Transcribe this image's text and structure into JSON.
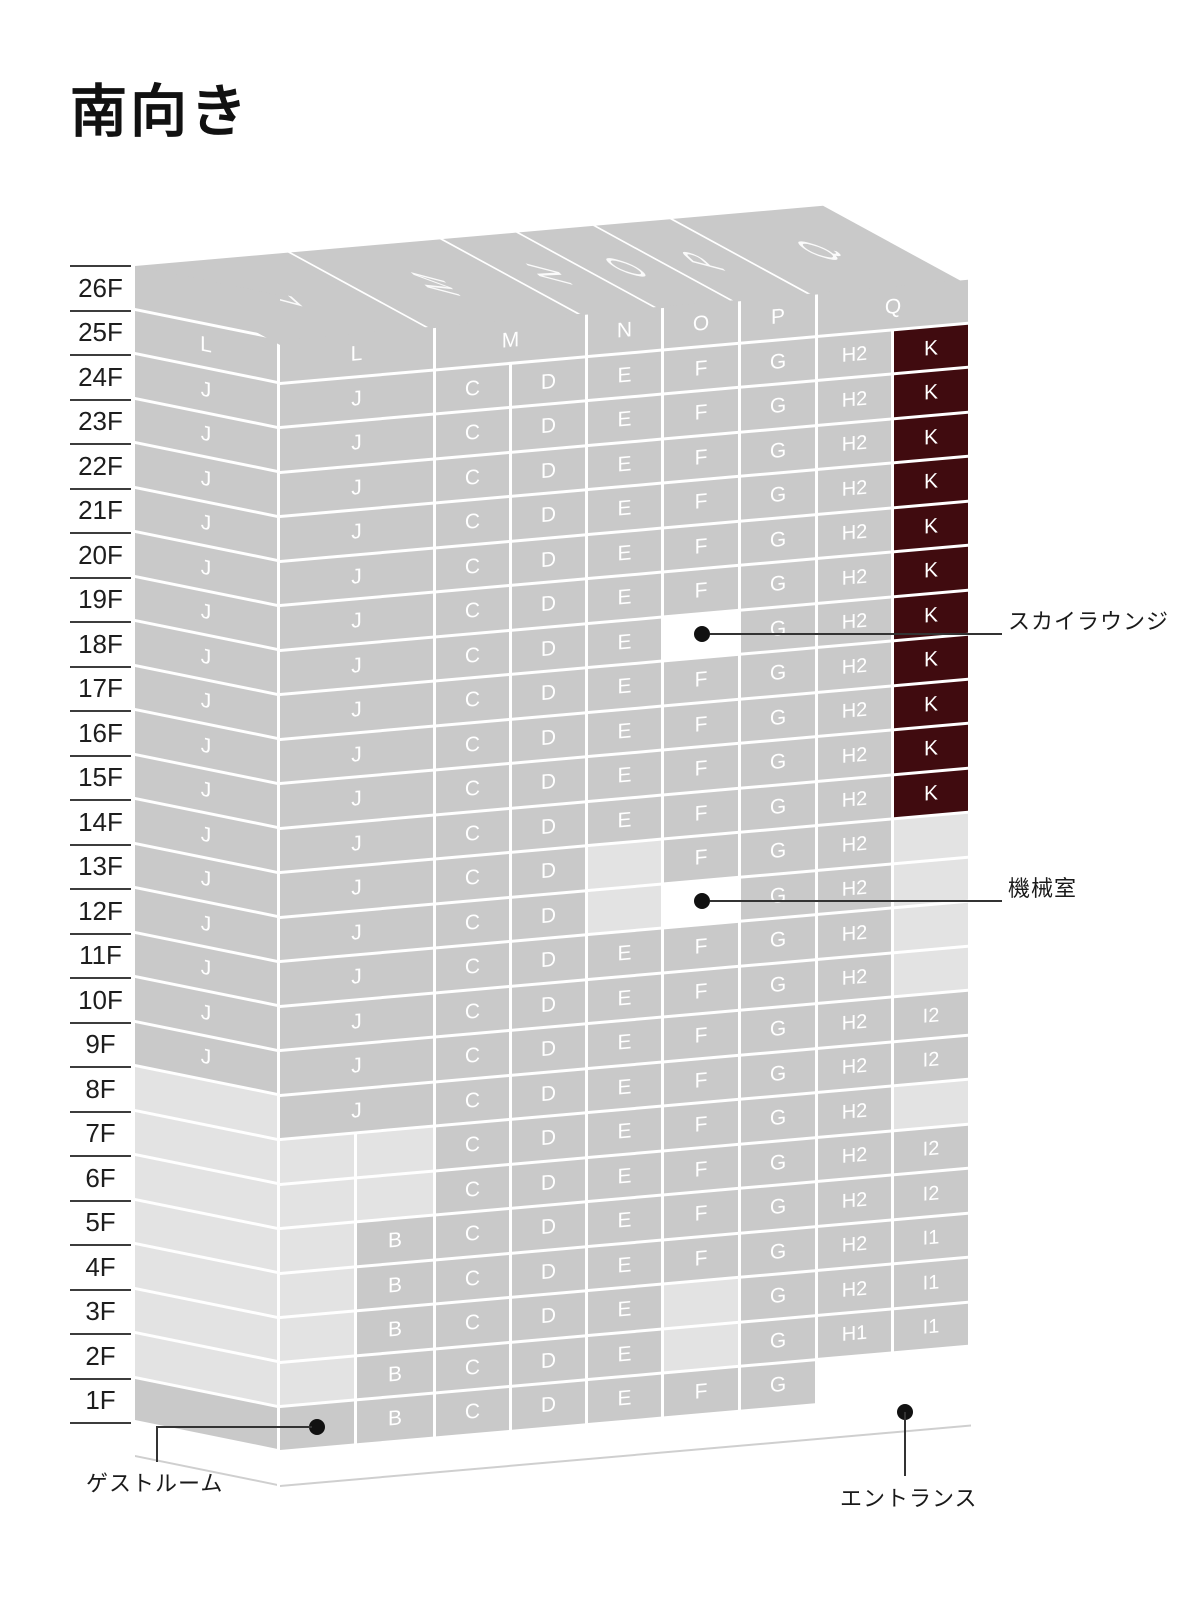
{
  "title": "南向き",
  "floor_labels": [
    "26F",
    "25F",
    "24F",
    "23F",
    "22F",
    "21F",
    "20F",
    "19F",
    "18F",
    "17F",
    "16F",
    "15F",
    "14F",
    "13F",
    "12F",
    "11F",
    "10F",
    "9F",
    "8F",
    "7F",
    "6F",
    "5F",
    "4F",
    "3F",
    "2F",
    "1F"
  ],
  "colors": {
    "cell_gray": "#c9c9c9",
    "cell_light": "#e3e3e3",
    "cell_dark_red": "#400b0f",
    "cell_white": "#ffffff",
    "letter_white": "#ffffff",
    "line_black": "#333333"
  },
  "roof_panels": [
    {
      "label": "L"
    },
    {
      "label": "M"
    },
    {
      "label": "N"
    },
    {
      "label": "O"
    },
    {
      "label": "P"
    },
    {
      "label": "Q"
    }
  ],
  "side_rows": [
    {
      "floor": "26F",
      "label": "",
      "type": "n"
    },
    {
      "floor": "25F",
      "label": "L",
      "type": "n"
    },
    {
      "floor": "24F",
      "label": "J",
      "type": "n"
    },
    {
      "floor": "23F",
      "label": "J",
      "type": "n"
    },
    {
      "floor": "22F",
      "label": "J",
      "type": "n"
    },
    {
      "floor": "21F",
      "label": "J",
      "type": "n"
    },
    {
      "floor": "20F",
      "label": "J",
      "type": "n"
    },
    {
      "floor": "19F",
      "label": "J",
      "type": "n"
    },
    {
      "floor": "18F",
      "label": "J",
      "type": "n"
    },
    {
      "floor": "17F",
      "label": "J",
      "type": "n"
    },
    {
      "floor": "16F",
      "label": "J",
      "type": "n"
    },
    {
      "floor": "15F",
      "label": "J",
      "type": "n"
    },
    {
      "floor": "14F",
      "label": "J",
      "type": "n"
    },
    {
      "floor": "13F",
      "label": "J",
      "type": "n"
    },
    {
      "floor": "12F",
      "label": "J",
      "type": "n"
    },
    {
      "floor": "11F",
      "label": "J",
      "type": "n"
    },
    {
      "floor": "10F",
      "label": "J",
      "type": "n"
    },
    {
      "floor": "9F",
      "label": "J",
      "type": "n"
    },
    {
      "floor": "8F",
      "label": "",
      "type": "lt"
    },
    {
      "floor": "7F",
      "label": "",
      "type": "lt"
    },
    {
      "floor": "6F",
      "label": "",
      "type": "lt"
    },
    {
      "floor": "5F",
      "label": "",
      "type": "lt"
    },
    {
      "floor": "4F",
      "label": "",
      "type": "lt"
    },
    {
      "floor": "3F",
      "label": "",
      "type": "lt"
    },
    {
      "floor": "2F",
      "label": "",
      "type": "lt"
    },
    {
      "floor": "1F",
      "label": "",
      "type": "n"
    }
  ],
  "front_rows": [
    {
      "floor": "25F",
      "cells": [
        [
          "L25",
          "L",
          "n"
        ],
        [
          "M25",
          "M",
          "n"
        ],
        [
          "N25",
          "N",
          "n"
        ],
        [
          "O25",
          "O",
          "n"
        ],
        [
          "P25",
          "P",
          "n"
        ],
        [
          "Q25",
          "Q",
          "n"
        ]
      ]
    },
    {
      "floor": "24F",
      "cells": [
        [
          "J",
          "J",
          "n"
        ],
        [
          "C",
          "C",
          "n"
        ],
        [
          "D",
          "D",
          "n"
        ],
        [
          "E",
          "E",
          "n"
        ],
        [
          "F",
          "F",
          "n"
        ],
        [
          "G",
          "G",
          "n"
        ],
        [
          "H",
          "H2",
          "n"
        ],
        [
          "K",
          "K",
          "k"
        ]
      ]
    },
    {
      "floor": "23F",
      "cells": [
        [
          "J",
          "J",
          "n"
        ],
        [
          "C",
          "C",
          "n"
        ],
        [
          "D",
          "D",
          "n"
        ],
        [
          "E",
          "E",
          "n"
        ],
        [
          "F",
          "F",
          "n"
        ],
        [
          "G",
          "G",
          "n"
        ],
        [
          "H",
          "H2",
          "n"
        ],
        [
          "K",
          "K",
          "k"
        ]
      ]
    },
    {
      "floor": "22F",
      "cells": [
        [
          "J",
          "J",
          "n"
        ],
        [
          "C",
          "C",
          "n"
        ],
        [
          "D",
          "D",
          "n"
        ],
        [
          "E",
          "E",
          "n"
        ],
        [
          "F",
          "F",
          "n"
        ],
        [
          "G",
          "G",
          "n"
        ],
        [
          "H",
          "H2",
          "n"
        ],
        [
          "K",
          "K",
          "k"
        ]
      ]
    },
    {
      "floor": "21F",
      "cells": [
        [
          "J",
          "J",
          "n"
        ],
        [
          "C",
          "C",
          "n"
        ],
        [
          "D",
          "D",
          "n"
        ],
        [
          "E",
          "E",
          "n"
        ],
        [
          "F",
          "F",
          "n"
        ],
        [
          "G",
          "G",
          "n"
        ],
        [
          "H",
          "H2",
          "n"
        ],
        [
          "K",
          "K",
          "k"
        ]
      ]
    },
    {
      "floor": "20F",
      "cells": [
        [
          "J",
          "J",
          "n"
        ],
        [
          "C",
          "C",
          "n"
        ],
        [
          "D",
          "D",
          "n"
        ],
        [
          "E",
          "E",
          "n"
        ],
        [
          "F",
          "F",
          "n"
        ],
        [
          "G",
          "G",
          "n"
        ],
        [
          "H",
          "H2",
          "n"
        ],
        [
          "K",
          "K",
          "k"
        ]
      ]
    },
    {
      "floor": "19F",
      "cells": [
        [
          "J",
          "J",
          "n"
        ],
        [
          "C",
          "C",
          "n"
        ],
        [
          "D",
          "D",
          "n"
        ],
        [
          "E",
          "E",
          "n"
        ],
        [
          "F",
          "F",
          "n"
        ],
        [
          "G",
          "G",
          "n"
        ],
        [
          "H",
          "H2",
          "n"
        ],
        [
          "K",
          "K",
          "k"
        ]
      ]
    },
    {
      "floor": "18F",
      "cells": [
        [
          "J",
          "J",
          "n"
        ],
        [
          "C",
          "C",
          "n"
        ],
        [
          "D",
          "D",
          "n"
        ],
        [
          "E",
          "E",
          "n"
        ],
        [
          "F",
          "",
          "wh"
        ],
        [
          "G",
          "G",
          "n"
        ],
        [
          "H",
          "H2",
          "n"
        ],
        [
          "K",
          "K",
          "k"
        ]
      ]
    },
    {
      "floor": "17F",
      "cells": [
        [
          "J",
          "J",
          "n"
        ],
        [
          "C",
          "C",
          "n"
        ],
        [
          "D",
          "D",
          "n"
        ],
        [
          "E",
          "E",
          "n"
        ],
        [
          "F",
          "F",
          "n"
        ],
        [
          "G",
          "G",
          "n"
        ],
        [
          "H",
          "H2",
          "n"
        ],
        [
          "K",
          "K",
          "k"
        ]
      ]
    },
    {
      "floor": "16F",
      "cells": [
        [
          "J",
          "J",
          "n"
        ],
        [
          "C",
          "C",
          "n"
        ],
        [
          "D",
          "D",
          "n"
        ],
        [
          "E",
          "E",
          "n"
        ],
        [
          "F",
          "F",
          "n"
        ],
        [
          "G",
          "G",
          "n"
        ],
        [
          "H",
          "H2",
          "n"
        ],
        [
          "K",
          "K",
          "k"
        ]
      ]
    },
    {
      "floor": "15F",
      "cells": [
        [
          "J",
          "J",
          "n"
        ],
        [
          "C",
          "C",
          "n"
        ],
        [
          "D",
          "D",
          "n"
        ],
        [
          "E",
          "E",
          "n"
        ],
        [
          "F",
          "F",
          "n"
        ],
        [
          "G",
          "G",
          "n"
        ],
        [
          "H",
          "H2",
          "n"
        ],
        [
          "K",
          "K",
          "k"
        ]
      ]
    },
    {
      "floor": "14F",
      "cells": [
        [
          "J",
          "J",
          "n"
        ],
        [
          "C",
          "C",
          "n"
        ],
        [
          "D",
          "D",
          "n"
        ],
        [
          "E",
          "E",
          "n"
        ],
        [
          "F",
          "F",
          "n"
        ],
        [
          "G",
          "G",
          "n"
        ],
        [
          "H",
          "H2",
          "n"
        ],
        [
          "K",
          "K",
          "k"
        ]
      ]
    },
    {
      "floor": "13F",
      "cells": [
        [
          "J",
          "J",
          "n"
        ],
        [
          "C",
          "C",
          "n"
        ],
        [
          "D",
          "D",
          "n"
        ],
        [
          "E",
          "",
          "lt"
        ],
        [
          "F",
          "F",
          "n"
        ],
        [
          "G",
          "G",
          "n"
        ],
        [
          "H",
          "H2",
          "n"
        ],
        [
          "K",
          "",
          "lt"
        ]
      ]
    },
    {
      "floor": "12F",
      "cells": [
        [
          "J",
          "J",
          "n"
        ],
        [
          "C",
          "C",
          "n"
        ],
        [
          "D",
          "D",
          "n"
        ],
        [
          "E",
          "",
          "lt"
        ],
        [
          "F",
          "",
          "wh"
        ],
        [
          "G",
          "G",
          "n"
        ],
        [
          "H",
          "H2",
          "n"
        ],
        [
          "K",
          "",
          "lt"
        ]
      ]
    },
    {
      "floor": "11F",
      "cells": [
        [
          "J",
          "J",
          "n"
        ],
        [
          "C",
          "C",
          "n"
        ],
        [
          "D",
          "D",
          "n"
        ],
        [
          "E",
          "E",
          "n"
        ],
        [
          "F",
          "F",
          "n"
        ],
        [
          "G",
          "G",
          "n"
        ],
        [
          "H",
          "H2",
          "n"
        ],
        [
          "K",
          "",
          "lt"
        ]
      ]
    },
    {
      "floor": "10F",
      "cells": [
        [
          "J",
          "J",
          "n"
        ],
        [
          "C",
          "C",
          "n"
        ],
        [
          "D",
          "D",
          "n"
        ],
        [
          "E",
          "E",
          "n"
        ],
        [
          "F",
          "F",
          "n"
        ],
        [
          "G",
          "G",
          "n"
        ],
        [
          "H",
          "H2",
          "n"
        ],
        [
          "K",
          "",
          "lt"
        ]
      ]
    },
    {
      "floor": "9F",
      "cells": [
        [
          "J",
          "J",
          "n"
        ],
        [
          "C",
          "C",
          "n"
        ],
        [
          "D",
          "D",
          "n"
        ],
        [
          "E",
          "E",
          "n"
        ],
        [
          "F",
          "F",
          "n"
        ],
        [
          "G",
          "G",
          "n"
        ],
        [
          "H",
          "H2",
          "n"
        ],
        [
          "K",
          "I2",
          "n"
        ]
      ]
    },
    {
      "floor": "8F",
      "cells": [
        [
          "J",
          "J",
          "n"
        ],
        [
          "C",
          "C",
          "n"
        ],
        [
          "D",
          "D",
          "n"
        ],
        [
          "E",
          "E",
          "n"
        ],
        [
          "F",
          "F",
          "n"
        ],
        [
          "G",
          "G",
          "n"
        ],
        [
          "H",
          "H2",
          "n"
        ],
        [
          "K",
          "I2",
          "n"
        ]
      ]
    },
    {
      "floor": "7F",
      "cells": [
        [
          "JA",
          "",
          "lt"
        ],
        [
          "JB",
          "",
          "lt"
        ],
        [
          "C",
          "C",
          "n"
        ],
        [
          "D",
          "D",
          "n"
        ],
        [
          "E",
          "E",
          "n"
        ],
        [
          "F",
          "F",
          "n"
        ],
        [
          "G",
          "G",
          "n"
        ],
        [
          "H",
          "H2",
          "n"
        ],
        [
          "K",
          "",
          "lt"
        ]
      ]
    },
    {
      "floor": "6F",
      "cells": [
        [
          "JA",
          "",
          "lt"
        ],
        [
          "JB",
          "",
          "lt"
        ],
        [
          "C",
          "C",
          "n"
        ],
        [
          "D",
          "D",
          "n"
        ],
        [
          "E",
          "E",
          "n"
        ],
        [
          "F",
          "F",
          "n"
        ],
        [
          "G",
          "G",
          "n"
        ],
        [
          "H",
          "H2",
          "n"
        ],
        [
          "K",
          "I2",
          "n"
        ]
      ]
    },
    {
      "floor": "5F",
      "cells": [
        [
          "JA",
          "",
          "lt"
        ],
        [
          "JB",
          "B",
          "n"
        ],
        [
          "C",
          "C",
          "n"
        ],
        [
          "D",
          "D",
          "n"
        ],
        [
          "E",
          "E",
          "n"
        ],
        [
          "F",
          "F",
          "n"
        ],
        [
          "G",
          "G",
          "n"
        ],
        [
          "H",
          "H2",
          "n"
        ],
        [
          "K",
          "I2",
          "n"
        ]
      ]
    },
    {
      "floor": "4F",
      "cells": [
        [
          "JA",
          "",
          "lt"
        ],
        [
          "JB",
          "B",
          "n"
        ],
        [
          "C",
          "C",
          "n"
        ],
        [
          "D",
          "D",
          "n"
        ],
        [
          "E",
          "E",
          "n"
        ],
        [
          "F",
          "F",
          "n"
        ],
        [
          "G",
          "G",
          "n"
        ],
        [
          "H",
          "H2",
          "n"
        ],
        [
          "K",
          "I1",
          "n"
        ]
      ]
    },
    {
      "floor": "3F",
      "cells": [
        [
          "JA",
          "",
          "lt"
        ],
        [
          "JB",
          "B",
          "n"
        ],
        [
          "C",
          "C",
          "n"
        ],
        [
          "D",
          "D",
          "n"
        ],
        [
          "E",
          "E",
          "n"
        ],
        [
          "F",
          "",
          "lt"
        ],
        [
          "G",
          "G",
          "n"
        ],
        [
          "H",
          "H2",
          "n"
        ],
        [
          "K",
          "I1",
          "n"
        ]
      ]
    },
    {
      "floor": "2F",
      "cells": [
        [
          "JA",
          "",
          "lt"
        ],
        [
          "JB",
          "B",
          "n"
        ],
        [
          "C",
          "C",
          "n"
        ],
        [
          "D",
          "D",
          "n"
        ],
        [
          "E",
          "E",
          "n"
        ],
        [
          "F",
          "",
          "lt"
        ],
        [
          "G",
          "G",
          "n"
        ],
        [
          "H",
          "H1",
          "n"
        ],
        [
          "K",
          "I1",
          "n"
        ]
      ]
    },
    {
      "floor": "1F",
      "cells": [
        [
          "JA",
          "",
          "n"
        ],
        [
          "JB",
          "B",
          "n"
        ],
        [
          "C",
          "C",
          "n"
        ],
        [
          "D",
          "D",
          "n"
        ],
        [
          "E",
          "E",
          "n"
        ],
        [
          "F",
          "F",
          "n"
        ],
        [
          "G",
          "G",
          "n"
        ],
        [
          "ENT",
          "",
          "wh"
        ]
      ]
    }
  ],
  "callouts": {
    "sky_lounge": {
      "label": "スカイラウンジ",
      "floor": "18F",
      "unit_column": "F"
    },
    "machine_room": {
      "label": "機械室",
      "floor": "12F",
      "unit_column": "F"
    },
    "guest_room": {
      "label": "ゲストルーム",
      "floor": "1F"
    },
    "entrance": {
      "label": "エントランス",
      "floor": "1F"
    }
  }
}
